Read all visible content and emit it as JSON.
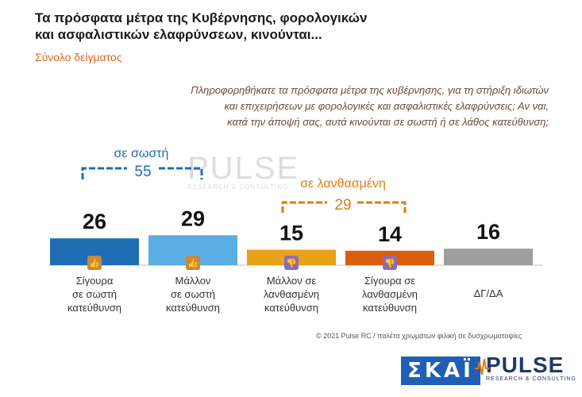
{
  "header": {
    "title_line1": "Τα πρόσφατα μέτρα της Κυβέρνησης, φορολογικών",
    "title_line2": "και ασφαλιστικών ελαφρύνσεων, κινούνται...",
    "subtitle": "Σύνολο δείγματος",
    "question_line1": "Πληροφορηθήκατε τα πρόσφατα μέτρα της κυβέρνησης, για τη στήριξη ιδιωτών",
    "question_line2": "και επιχειρήσεων με φορολογικές και ασφαλιστικές ελαφρύνσεις; Αν ναι,",
    "question_line3": "κατά την άποψή σας, αυτά κινούνται σε σωστή ή σε λάθος κατεύθυνση;"
  },
  "watermark": {
    "main": "PULSE",
    "sub": "RESEARCH & CONSULTING"
  },
  "groups": {
    "correct": {
      "label": "σε σωστή",
      "total": "55",
      "color": "#1f6db5"
    },
    "wrong": {
      "label": "σε λανθασμένη",
      "total": "29",
      "color": "#e07b12"
    }
  },
  "chart_data": {
    "type": "bar",
    "categories": [
      [
        "Σίγουρα",
        "σε σωστή",
        "κατεύθυνση"
      ],
      [
        "Μάλλον",
        "σε σωστή",
        "κατεύθυνση"
      ],
      [
        "Μάλλον σε",
        "λανθασμένη",
        "κατεύθυνση"
      ],
      [
        "Σίγουρα σε",
        "λανθασμένη",
        "κατεύθυνση"
      ],
      [
        "ΔΓ/ΔΑ"
      ]
    ],
    "values": [
      26,
      29,
      15,
      14,
      16
    ],
    "colors": [
      "#1f6db5",
      "#5aaee3",
      "#e8a21a",
      "#d95f0e",
      "#9e9e9e"
    ],
    "icons": [
      "double-thumbs-up-icon",
      "thumbs-up-icon",
      "thumbs-down-icon",
      "double-thumbs-down-icon",
      null
    ],
    "icon_bg": [
      "#c9883a",
      "#c9883a",
      "#8e6bb5",
      "#8e6bb5",
      null
    ],
    "ylim": [
      0,
      30
    ]
  },
  "footer": {
    "text": "© 2021 Pulse RC  /  παλέτα χρωμάτων φιλική σε δυσχρωματοψίες"
  },
  "logos": {
    "skai": "ΣΚΑΪ",
    "pulse": "PULSE",
    "pulse_sub": "RESEARCH & CONSULTING"
  }
}
